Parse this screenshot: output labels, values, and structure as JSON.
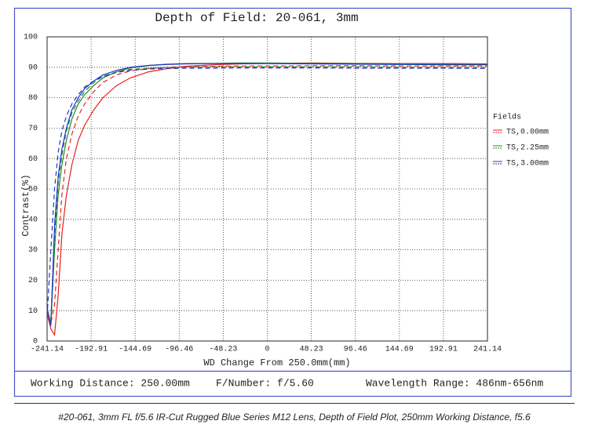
{
  "chart_data": {
    "type": "line",
    "title": "Depth of Field: 20-061, 3mm",
    "x_label": "WD Change From 250.0mm(mm)",
    "y_label": "Contrast(%)",
    "legend_title": "Fields",
    "grid": true,
    "xlim": [
      -241.14,
      241.14
    ],
    "xticks": [
      -241.14,
      -192.91,
      -144.69,
      -96.46,
      -48.23,
      0,
      48.23,
      96.46,
      144.69,
      192.91,
      241.14
    ],
    "ylim": [
      0,
      100
    ],
    "yticks": [
      0,
      10,
      20,
      30,
      40,
      50,
      60,
      70,
      80,
      90,
      100
    ],
    "x": [
      -241.14,
      -237,
      -233,
      -229,
      -225,
      -220,
      -214,
      -207,
      -200,
      -190,
      -180,
      -165,
      -150,
      -130,
      -110,
      -90,
      -60,
      -30,
      0,
      50,
      100,
      150,
      200,
      241.14
    ],
    "series": [
      {
        "name": "TS,0.00mm",
        "color": "#e8201c",
        "values": [
          9,
          4,
          2,
          15,
          35,
          48,
          58,
          66,
          71,
          76,
          80,
          84,
          86.5,
          88.5,
          89.5,
          90.3,
          90.8,
          91.1,
          91.3,
          91.4,
          91.3,
          91.2,
          91.2,
          91.1
        ],
        "dashed_values": [
          8,
          6,
          12,
          30,
          48,
          60,
          68,
          74,
          78,
          82,
          85,
          87.5,
          88.8,
          89.6,
          90,
          90.2,
          90.3,
          90.4,
          90.4,
          90.5,
          90.5,
          90.4,
          90.4,
          90.4
        ]
      },
      {
        "name": "TS,2.25mm",
        "color": "#1f8a2c",
        "values": [
          10,
          6,
          30,
          48,
          58,
          66,
          73,
          78,
          81,
          84,
          86.5,
          88.5,
          89.8,
          90.6,
          91,
          91.2,
          91.3,
          91.4,
          91.4,
          91.3,
          91.2,
          91.1,
          91,
          90.9
        ],
        "dashed_values": [
          9,
          7,
          35,
          52,
          61,
          69,
          75,
          79,
          82,
          85,
          87,
          88.5,
          89.3,
          89.7,
          89.9,
          90,
          90.1,
          90.1,
          90.1,
          90.1,
          90.1,
          90,
          90,
          90
        ]
      },
      {
        "name": "TS,3.00mm",
        "color": "#2233cc",
        "values": [
          11,
          5,
          38,
          54,
          63,
          70,
          76,
          80,
          83,
          85.5,
          87.5,
          89,
          90,
          90.6,
          90.9,
          91.1,
          91.2,
          91.2,
          91.2,
          91.1,
          91,
          90.9,
          90.8,
          90.8
        ],
        "dashed_values": [
          8,
          30,
          50,
          62,
          69,
          74,
          78,
          81,
          83.5,
          85.5,
          87,
          88.3,
          89,
          89.4,
          89.6,
          89.7,
          89.7,
          89.8,
          89.8,
          89.8,
          89.7,
          89.7,
          89.7,
          89.6
        ]
      }
    ],
    "footer": [
      "Working Distance: 250.00mm",
      "F/Number: f/5.60",
      "Wavelength Range: 486nm-656nm"
    ],
    "caption": "#20-061, 3mm FL f/5.6 IR-Cut Rugged Blue Series M12 Lens, Depth of Field Plot, 250mm Working Distance, f5.6"
  }
}
